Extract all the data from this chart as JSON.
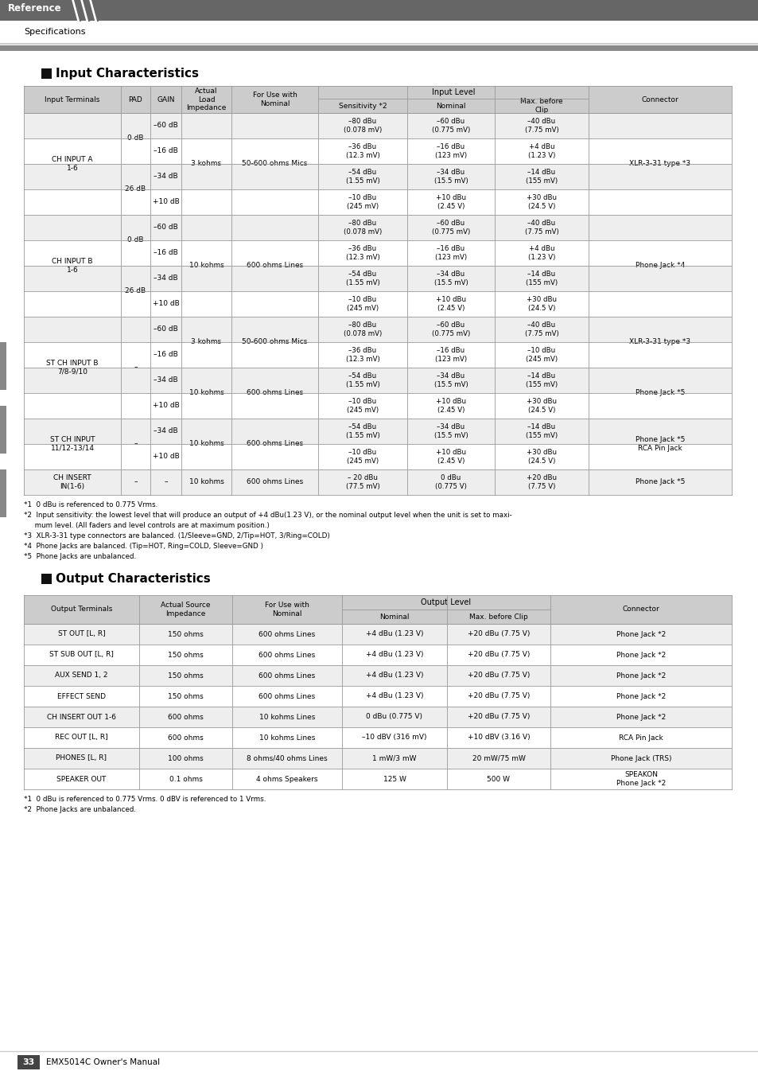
{
  "page_title": "Reference",
  "section_title": "Specifications",
  "input_title": "Input Characteristics",
  "output_title": "Output Characteristics",
  "input_notes": [
    "*1  0 dBu is referenced to 0.775 Vrms.",
    "*2  Input sensitivity: the lowest level that will produce an output of +4 dBu(1.23 V), or the nominal output level when the unit is set to maxi-",
    "     mum level. (All faders and level controls are at maximum position.)",
    "*3  XLR-3-31 type connectors are balanced. (1/Sleeve=GND, 2/Tip=HOT, 3/Ring=COLD)",
    "*4  Phone Jacks are balanced. (Tip=HOT, Ring=COLD, Sleeve=GND )",
    "*5  Phone Jacks are unbalanced."
  ],
  "output_rows": [
    [
      "ST OUT [L, R]",
      "150 ohms",
      "600 ohms Lines",
      "+4 dBu (1.23 V)",
      "+20 dBu (7.75 V)",
      "Phone Jack *2"
    ],
    [
      "ST SUB OUT [L, R]",
      "150 ohms",
      "600 ohms Lines",
      "+4 dBu (1.23 V)",
      "+20 dBu (7.75 V)",
      "Phone Jack *2"
    ],
    [
      "AUX SEND 1, 2",
      "150 ohms",
      "600 ohms Lines",
      "+4 dBu (1.23 V)",
      "+20 dBu (7.75 V)",
      "Phone Jack *2"
    ],
    [
      "EFFECT SEND",
      "150 ohms",
      "600 ohms Lines",
      "+4 dBu (1.23 V)",
      "+20 dBu (7.75 V)",
      "Phone Jack *2"
    ],
    [
      "CH INSERT OUT 1-6",
      "600 ohms",
      "10 kohms Lines",
      "0 dBu (0.775 V)",
      "+20 dBu (7.75 V)",
      "Phone Jack *2"
    ],
    [
      "REC OUT [L, R]",
      "600 ohms",
      "10 kohms Lines",
      "–10 dBV (316 mV)",
      "+10 dBV (3.16 V)",
      "RCA Pin Jack"
    ],
    [
      "PHONES [L, R]",
      "100 ohms",
      "8 ohms/40 ohms Lines",
      "1 mW/3 mW",
      "20 mW/75 mW",
      "Phone Jack (TRS)"
    ],
    [
      "SPEAKER OUT",
      "0.1 ohms",
      "4 ohms Speakers",
      "125 W",
      "500 W",
      "SPEAKON\nPhone Jack *2"
    ]
  ],
  "output_notes": [
    "*1  0 dBu is referenced to 0.775 Vrms. 0 dBV is referenced to 1 Vrms.",
    "*2  Phone Jacks are unbalanced."
  ],
  "row_bg_alt": "#eeeeee",
  "row_bg_white": "#ffffff",
  "header_bg": "#cccccc"
}
